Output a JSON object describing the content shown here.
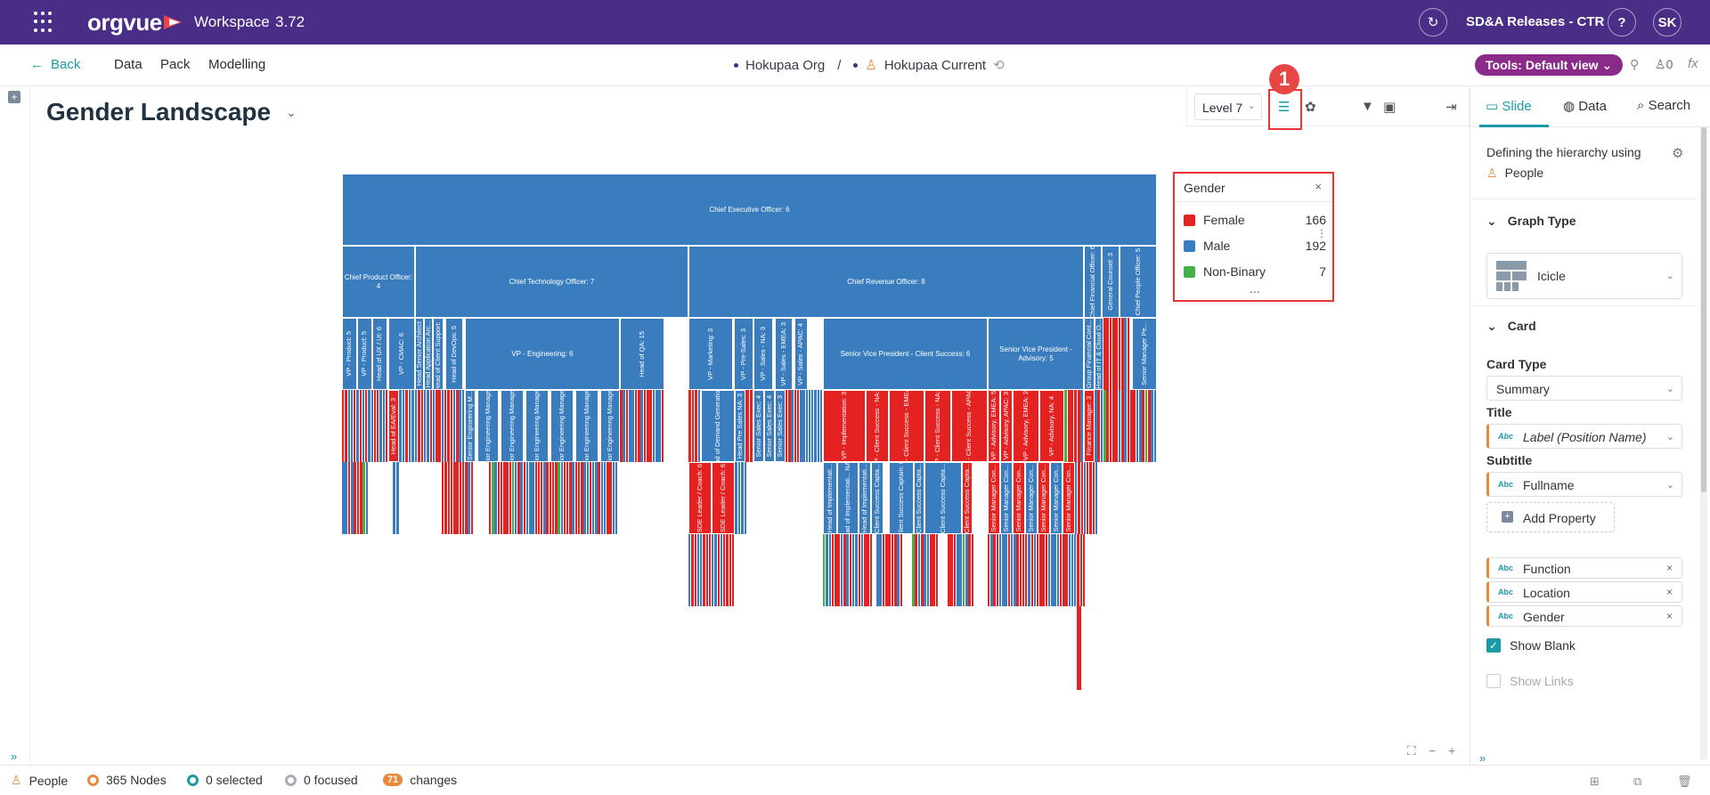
{
  "topbar": {
    "logo": "orgvue",
    "app_name": "Workspace",
    "version": "3.72",
    "release": "SD&A Releases - CTR",
    "help": "?",
    "user_initials": "SK"
  },
  "nav": {
    "back": "Back",
    "links": [
      "Data",
      "Pack",
      "Modelling"
    ],
    "dataset": "Hokupaa Org",
    "separator": "/",
    "view": "Hokupaa Current",
    "tools": "Tools: Default view",
    "users_count": "0",
    "fx": "fx"
  },
  "canvas": {
    "title": "Gender Landscape",
    "level": "Level 7",
    "step_badge": "1"
  },
  "legend": {
    "title": "Gender",
    "close": "×",
    "more": "...",
    "items": [
      {
        "label": "Female",
        "count": "166",
        "color": "#e42222"
      },
      {
        "label": "Male",
        "count": "192",
        "color": "#3a7dbf"
      },
      {
        "label": "Non-Binary",
        "count": "7",
        "color": "#45b045"
      }
    ]
  },
  "icicle": {
    "level1": [
      "Chief Executive Officer: 6"
    ],
    "level2": [
      "Chief Product Officer: 4",
      "Chief Technology Officer: 7",
      "Chief Revenue Officer: 8",
      "Chief Financial Officer: 6",
      "General Counsel: 3",
      "Chief People Officer: 5"
    ],
    "level3": [
      "VP - Product: 5",
      "VP - Product: 5",
      "Head of UX / UI: 6",
      "VP - CMAC: 6",
      "Head Senior Architect",
      "Head Application Arc...",
      "Head of Client Support: 1",
      "Head of DevOps: 5",
      "VP - Engineering: 6",
      "Head of QA: 15",
      "VP - Marketing: 3",
      "VP - Pre-Sales: 3",
      "VP - Sales - NA: 3",
      "VP - Sales - EMEA: 3",
      "VP - Sales - APAC: 4",
      "Senior Vice President - Client Success: 6",
      "Senior Vice President - Advisory: 5",
      "Group Financial Cont...",
      "Head of IT & Cloud O...",
      "Senior Manager Pe..."
    ],
    "level4": [
      "Head of EA/Eval: 3",
      "Senior Engineering M...",
      "Senior Engineering Manager: 8",
      "Senior Engineering Manager: 9",
      "Senior Engineering Manager: 9",
      "Senior Engineering Manager: 9",
      "Senior Engineering Manager: 8",
      "Senior Engineering Manager: 6",
      "Head of Demand Generation: 3",
      "Head Pre Sales NA: 3",
      "Senior Sales Exec: 4",
      "Senior Sales Exec: 4",
      "Senior Sales Exec: 3",
      "VP - Implementation: 3",
      "VP - Client Success - NA: 5",
      "VP - Client Success - EMEA: 5",
      "VP - Client Success - NA: 5",
      "VP - Client Success - APAC: 5",
      "VP - Advisory, EMEA: 5",
      "VP - Advisory, APAC: 3",
      "VP - Advisory, EMEA: 2",
      "VP - Advisory, NA: 4",
      "Finance Manager: 3"
    ],
    "level5": [
      "SDE Leader / Coach: 6",
      "SDE Leader / Coach: 6",
      "Head of Implementati...",
      "Head of Implementati... NA: 7",
      "Head of Implementati...",
      "Client Success Capta...",
      "Client Success Captain: 8",
      "Client Success Capta...",
      "Senior Manager Con...",
      "Senior Manager Con...",
      "Senior Manager Con...",
      "Senior Manager Con...",
      "Senior Manager Con...",
      "Senior Manager Con...",
      "Senior Manager Con..."
    ]
  },
  "right_panel": {
    "tabs": [
      "Slide",
      "Data",
      "Search"
    ],
    "hierarchy_text": "Defining the hierarchy using",
    "hierarchy_dim": "People",
    "graph_type_heading": "Graph Type",
    "graph_type": "Icicle",
    "card_heading": "Card",
    "card_type_label": "Card Type",
    "card_type": "Summary",
    "title_label": "Title",
    "title_prop": "Label (Position Name)",
    "subtitle_label": "Subtitle",
    "subtitle_prop": "Fullname",
    "add_property": "Add Property",
    "abc": "Abc",
    "properties": [
      "Function",
      "Location",
      "Gender"
    ],
    "show_blank": "Show Blank",
    "show_links": "Show Links"
  },
  "status": {
    "people": "People",
    "nodes": "365 Nodes",
    "selected": "0 selected",
    "focused": "0 focused",
    "changes_count": "71",
    "changes": "changes"
  },
  "colors": {
    "topbar": "#4a2d86",
    "accent": "#1b9aa6",
    "female": "#e42222",
    "male": "#3a7dbf",
    "nonbinary": "#45b045",
    "tools": "#8a2b8a"
  }
}
